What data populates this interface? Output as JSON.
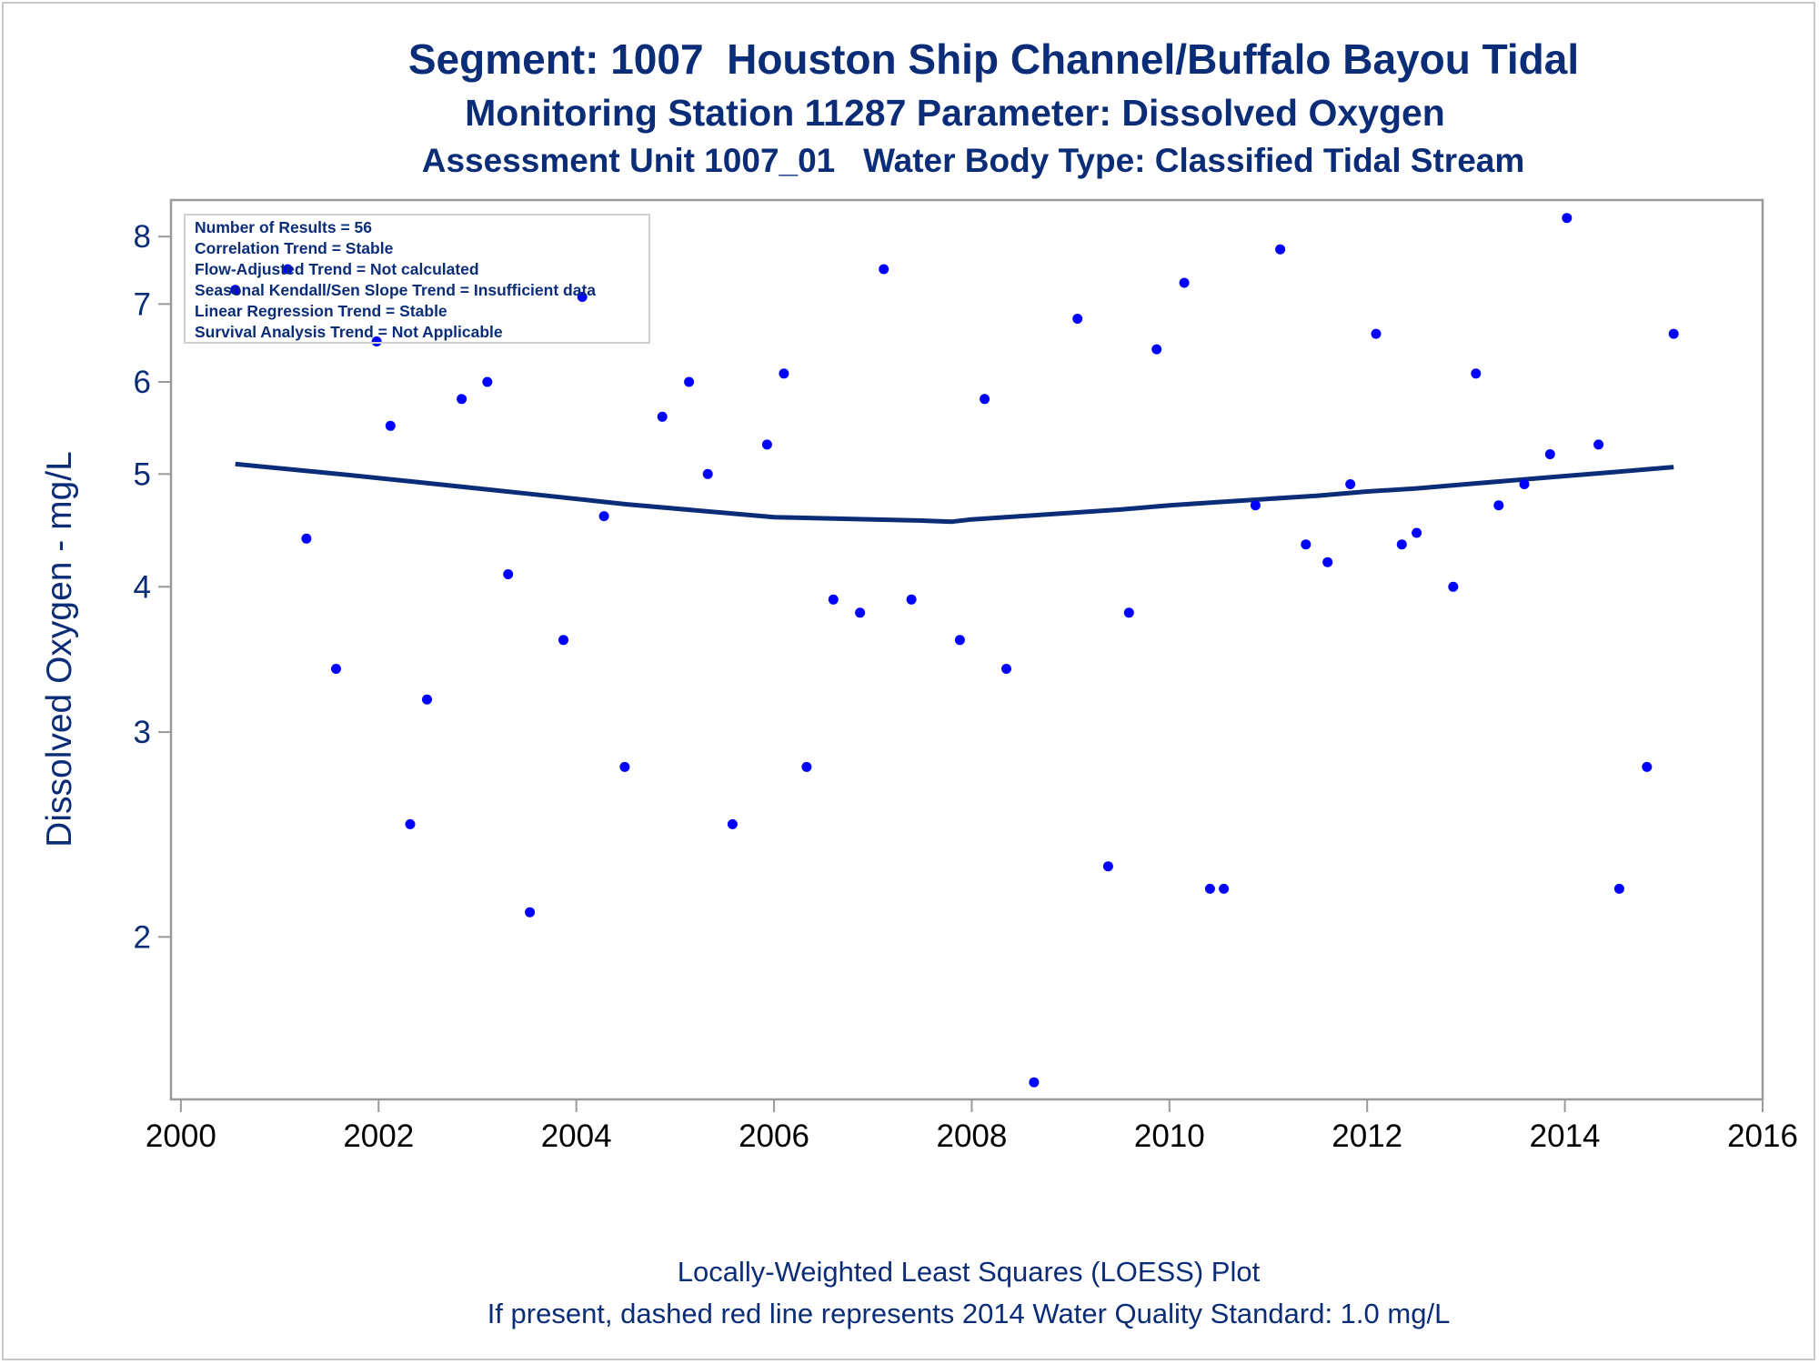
{
  "chart_data": {
    "type": "scatter",
    "title": "Segment: 1007  Houston Ship Channel/Buffalo Bayou Tidal",
    "subtitle": "Monitoring Station 11287 Parameter: Dissolved Oxygen",
    "subtitle2": "Assessment Unit 1007_01   Water Body Type: Classified Tidal Stream",
    "ylabel": "Dissolved Oxygen - mg/L",
    "xlabel": "",
    "footnotes": [
      "Locally-Weighted Least Squares (LOESS) Plot",
      "If present, dashed red line represents 2014 Water Quality Standard: 1.0 mg/L"
    ],
    "yscale": "log",
    "ylim": [
      1.45,
      8.6
    ],
    "xlim": [
      1999.9,
      2016
    ],
    "xticks": [
      2000,
      2002,
      2004,
      2006,
      2008,
      2010,
      2012,
      2014,
      2016
    ],
    "yticks": [
      2,
      3,
      4,
      5,
      6,
      7,
      8
    ],
    "grid": false,
    "stats_box": [
      "Number of Results = 56",
      "Correlation Trend = Stable",
      "Flow-Adjusted Trend = Not calculated",
      "Seasonal Kendall/Sen Slope Trend = Insufficient data",
      "Linear Regression Trend = Stable",
      "Survival Analysis Trend = Not Applicable"
    ],
    "stats_box_position": "top-left",
    "colors": {
      "points": "#0000ff",
      "loess": "#0b2d78",
      "text": "#0b2d78",
      "axis": "#9a9a9a"
    },
    "series": [
      {
        "kind": "points",
        "x": [
          2000.55,
          2001.08,
          2001.27,
          2001.57,
          2001.98,
          2002.12,
          2002.32,
          2002.49,
          2002.84,
          2003.1,
          2003.31,
          2003.53,
          2003.87,
          2004.06,
          2004.28,
          2004.49,
          2004.87,
          2005.14,
          2005.33,
          2005.58,
          2005.93,
          2006.1,
          2006.33,
          2006.6,
          2006.87,
          2007.11,
          2007.39,
          2007.88,
          2008.13,
          2008.35,
          2008.63,
          2009.07,
          2009.38,
          2009.59,
          2009.87,
          2010.15,
          2010.41,
          2010.55,
          2010.87,
          2011.12,
          2011.38,
          2011.6,
          2011.83,
          2012.09,
          2012.35,
          2012.5,
          2012.87,
          2013.1,
          2013.33,
          2013.59,
          2013.85,
          2014.02,
          2014.34,
          2014.55,
          2014.83,
          2015.1
        ],
        "y": [
          7.2,
          7.5,
          4.4,
          3.4,
          6.5,
          5.5,
          2.5,
          3.2,
          5.8,
          6.0,
          4.1,
          2.1,
          3.6,
          7.1,
          4.6,
          2.8,
          5.6,
          6.0,
          5.0,
          2.5,
          5.3,
          6.1,
          2.8,
          3.9,
          3.8,
          7.5,
          3.9,
          3.6,
          5.8,
          3.4,
          1.5,
          6.8,
          2.3,
          3.8,
          6.4,
          7.3,
          2.2,
          2.2,
          4.7,
          7.8,
          4.35,
          4.2,
          4.9,
          6.6,
          4.35,
          4.45,
          4.0,
          6.1,
          4.7,
          4.9,
          5.2,
          8.3,
          5.3,
          2.2,
          2.8,
          6.6
        ]
      },
      {
        "kind": "loess",
        "x": [
          2000.55,
          2001.5,
          2002.5,
          2003.5,
          2004.5,
          2005.5,
          2006.0,
          2006.5,
          2007.0,
          2007.5,
          2007.8,
          2008.0,
          2008.5,
          2009.0,
          2009.5,
          2010.0,
          2010.5,
          2011.0,
          2011.5,
          2012.0,
          2012.5,
          2013.0,
          2013.5,
          2014.0,
          2014.5,
          2015.1
        ],
        "y": [
          5.1,
          5.01,
          4.91,
          4.81,
          4.71,
          4.63,
          4.59,
          4.58,
          4.57,
          4.56,
          4.55,
          4.57,
          4.6,
          4.63,
          4.66,
          4.7,
          4.73,
          4.76,
          4.79,
          4.83,
          4.86,
          4.9,
          4.94,
          4.98,
          5.02,
          5.07
        ]
      }
    ]
  }
}
